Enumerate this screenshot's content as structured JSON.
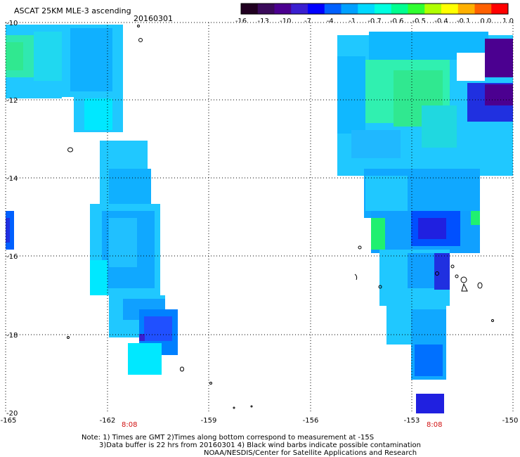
{
  "header": {
    "title": "ASCAT 25KM MLE-3 ascending",
    "date": "20160301"
  },
  "colorbar": {
    "tick_labels": [
      "-16",
      "-13",
      "-10",
      "-7",
      "-4",
      "-1",
      "-0.7",
      "-0.6",
      "-0.5",
      "-0.4",
      "-0.1",
      "0.0",
      "1.0"
    ],
    "colors": [
      "#200020",
      "#3a0a5a",
      "#4b0090",
      "#3a1fd0",
      "#0000ff",
      "#0060ff",
      "#00a0ff",
      "#00d8ff",
      "#00ffe0",
      "#00ff90",
      "#30ff30",
      "#b0ff00",
      "#ffff00",
      "#ffb000",
      "#ff6000",
      "#ff0000"
    ]
  },
  "map": {
    "lat_labels": [
      "-10",
      "-12",
      "-14",
      "-16",
      "-18",
      "-20"
    ],
    "lon_labels": [
      "-165",
      "-162",
      "-159",
      "-156",
      "-153",
      "-150"
    ],
    "time_labels": [
      "8:08",
      "8:08"
    ]
  },
  "notes": {
    "line1": "Note: 1) Times are GMT 2)Times along bottom correspond to measurement at -15S",
    "line2": "3)Data buffer is 22 hrs from 20160301 4) Black wind barbs indicate possible contamination",
    "line3": "NOAA/NESDIS/Center for Satellite Applications and Research"
  },
  "colors": {
    "cyan": "#00e8ff",
    "light_blue": "#20c8ff",
    "blue": "#0090ff",
    "green": "#00ff90",
    "dark": "#4b0090",
    "time_red": "#d01010"
  }
}
